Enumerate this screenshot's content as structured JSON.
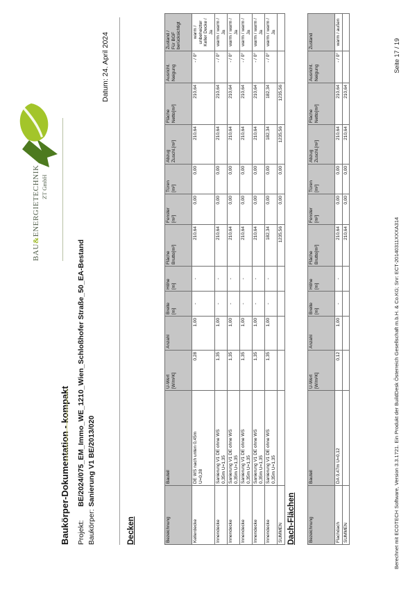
{
  "page": {
    "title": "Baukörper-Dokumentation - kompakt",
    "projekt_label": "Projekt:",
    "projekt_value": "BE/2024/075_EM_Immo_WE_1210_Wien_Schloßhofer Straße_50_EA-Bestand",
    "baukoerper_label": "Baukörper:",
    "baukoerper_value": "Sanierung V1 BE/2013/020",
    "datum": "Datum: 24. April 2024",
    "footer_left": "Berechnet mit ECOTECH Software, Version 3.3.1721. Ein Produkt der BuildDesk Österreich Gesellschaft m.b.H. & Co.KG; Snr: ECT-20140311XXXA314",
    "footer_right": "Seite 17 / 19"
  },
  "logo": {
    "text_pre_amp": "BAU",
    "amp": "&",
    "text_post_amp": "ENERGIETECHNIK",
    "subtext": "ZT GmbH",
    "color_dark_green": "#4d7a1f",
    "color_light_green": "#a3c52a",
    "color_text": "#4f5d49"
  },
  "tables": [
    {
      "heading": "Decken",
      "headers": [
        "Bezeichnung",
        "Bauteil",
        "U-Wert\n[W/m²K]",
        "Anzahl",
        "Breite\n[m]",
        "Höhe\n[m]",
        "Fläche\nBrutto[m²]",
        "Fenster\n[m²]",
        "Türen\n[m²]",
        "Abzug\nZuschl.[m²]",
        "Fläche\nNetto[m²]",
        "Ausricht.\nNeigung",
        "Zustand /\nFür BGF\nberücksichtigt"
      ],
      "rows": [
        {
          "cells": [
            "Kellerdecke",
            "DE WS nach unten 0,45m\nU=0,28",
            "0,28",
            "1,00",
            "-",
            "-",
            "210,64",
            "0,00",
            "0,00",
            "210,64",
            "210,64",
            "- / 0°",
            "warm /\nunbeheizter\nKeller Decke /\nJa"
          ]
        },
        {
          "cells": [
            "Innendecke",
            "Sanierung V1 DE ohne WS\n0,35m U=1,35",
            "1,35",
            "1,00",
            "-",
            "-",
            "210,64",
            "0,00",
            "0,00",
            "210,64",
            "210,64",
            "- / 0°",
            "warm / warm /\nJa"
          ]
        },
        {
          "cells": [
            "Innendecke",
            "Sanierung V1 DE ohne WS\n0,35m U=1,35",
            "1,35",
            "1,00",
            "-",
            "-",
            "210,64",
            "0,00",
            "0,00",
            "210,64",
            "210,64",
            "- / 0°",
            "warm / warm /\nJa"
          ]
        },
        {
          "cells": [
            "Innendecke",
            "Sanierung V1 DE ohne WS\n0,35m U=1,35",
            "1,35",
            "1,00",
            "-",
            "-",
            "210,64",
            "0,00",
            "0,00",
            "210,64",
            "210,64",
            "- / 0°",
            "warm / warm /\nJa"
          ]
        },
        {
          "cells": [
            "Innendecke",
            "Sanierung V1 DE ohne WS\n0,35m U=1,35",
            "1,35",
            "1,00",
            "-",
            "-",
            "210,64",
            "0,00",
            "0,00",
            "210,64",
            "210,64",
            "- / 0°",
            "warm / warm /\nJa"
          ]
        },
        {
          "cells": [
            "Innendecke",
            "Sanierung V1 DE ohne WS\n0,35m U=1,35",
            "1,35",
            "1,00",
            "-",
            "-",
            "182,34",
            "0,00",
            "0,00",
            "182,34",
            "182,34",
            "- / 0°",
            "warm / warm /\nJa"
          ]
        },
        {
          "cells": [
            "SUMMEN",
            "",
            "",
            "",
            "",
            "",
            "1235,56",
            "0,00",
            "0,00",
            "1235,56",
            "1235,56",
            "",
            ""
          ],
          "summen": true
        }
      ]
    },
    {
      "heading": "Dach-Flächen",
      "headers": [
        "Bezeichnung",
        "Bauteil",
        "U-Wert\n[W/m²K]",
        "Anzahl",
        "Breite\n[m]",
        "Höhe\n[m]",
        "Fläche\nBrutto[m²]",
        "Fenster\n[m²]",
        "Türen\n[m²]",
        "Abzug\nZuschl.[m²]",
        "Fläche\nNetto[m²]",
        "Ausricht.\nNeigung",
        "Zustand"
      ],
      "rows": [
        {
          "cells": [
            "Flachdach",
            "DA 0,47m U=0,12",
            "0,12",
            "1,00",
            "-",
            "-",
            "210,64",
            "0,00",
            "0,00",
            "210,64",
            "210,64",
            "- / 0°",
            "warm / außen"
          ]
        },
        {
          "cells": [
            "SUMMEN",
            "",
            "",
            "",
            "",
            "",
            "210,64",
            "0,00",
            "0,00",
            "210,64",
            "210,64",
            "",
            ""
          ],
          "summen": true
        }
      ]
    }
  ]
}
